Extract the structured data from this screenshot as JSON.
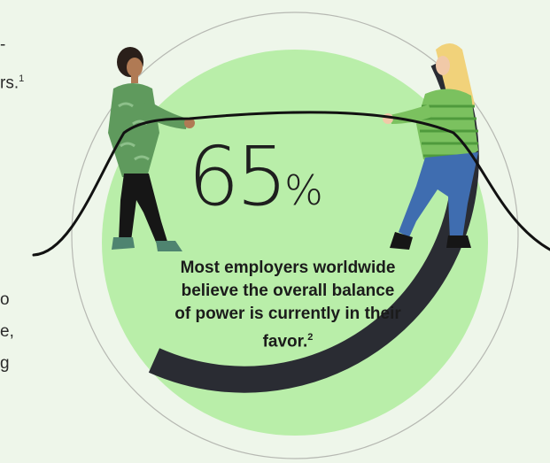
{
  "left_text": {
    "line1": "-",
    "line2": "rs.",
    "line2_footnote": "1",
    "line3": "o",
    "line4": "e,",
    "line5": "g"
  },
  "stat": {
    "number": "65",
    "unit": "%",
    "caption": "Most employers worldwide believe the overall balance of power is currently in their favor.",
    "caption_footnote": "2"
  },
  "colors": {
    "background": "#eef6ea",
    "circle_fill": "#b9eea9",
    "ring_arc": "#2a2c33",
    "shirt_left": "#5f9a5d",
    "shirt_right": "#7bc15f"
  },
  "illustration": {
    "left_figure": "person-pulling-rope-icon",
    "right_figure": "person-pulling-rope-icon",
    "rope": "rope-icon"
  }
}
